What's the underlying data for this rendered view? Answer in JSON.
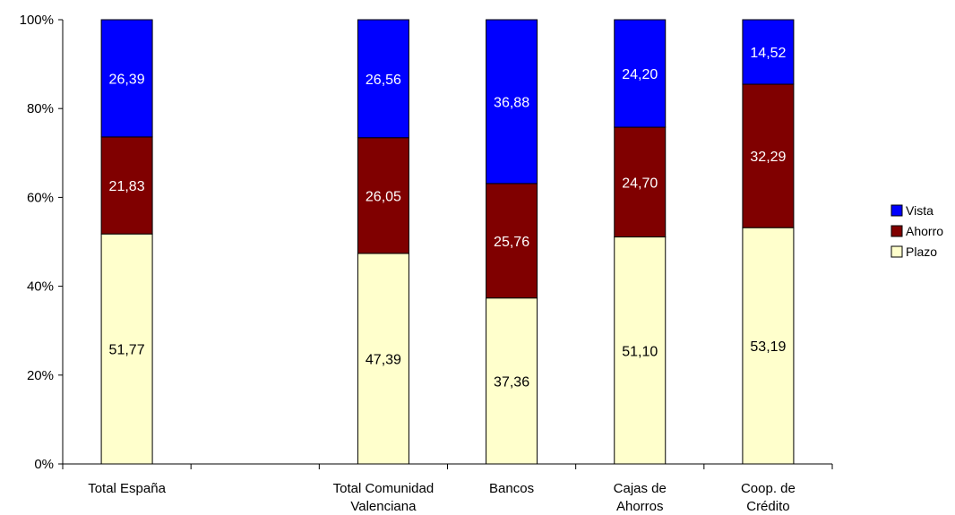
{
  "chart_data": {
    "type": "bar",
    "stacked": true,
    "percent_stacked": true,
    "categories": [
      [
        "Total España"
      ],
      [],
      [
        "Total Comunidad",
        "Valenciana"
      ],
      [
        "Bancos"
      ],
      [
        "Cajas de",
        "Ahorros"
      ],
      [
        "Coop. de",
        "Crédito"
      ]
    ],
    "series": [
      {
        "name": "Plazo",
        "color": "#ffffcc",
        "label_color": "#000000",
        "values": [
          51.77,
          null,
          47.39,
          37.36,
          51.1,
          53.19
        ]
      },
      {
        "name": "Ahorro",
        "color": "#800000",
        "label_color": "#ffffff",
        "values": [
          21.83,
          null,
          26.05,
          25.76,
          24.7,
          32.29
        ]
      },
      {
        "name": "Vista",
        "color": "#0000ff",
        "label_color": "#ffffff",
        "values": [
          26.39,
          null,
          26.56,
          36.88,
          24.2,
          14.52
        ]
      }
    ],
    "data_labels": [
      [
        "51,77",
        "",
        "47,39",
        "37,36",
        "51,10",
        "53,19"
      ],
      [
        "21,83",
        "",
        "26,05",
        "25,76",
        "24,70",
        "32,29"
      ],
      [
        "26,39",
        "",
        "26,56",
        "36,88",
        "24,20",
        "14,52"
      ]
    ],
    "y_ticks": [
      "0%",
      "20%",
      "40%",
      "60%",
      "80%",
      "100%"
    ],
    "ylim": [
      0,
      100
    ],
    "legend": {
      "position": "right",
      "order": [
        "Vista",
        "Ahorro",
        "Plazo"
      ]
    },
    "grid": false
  }
}
